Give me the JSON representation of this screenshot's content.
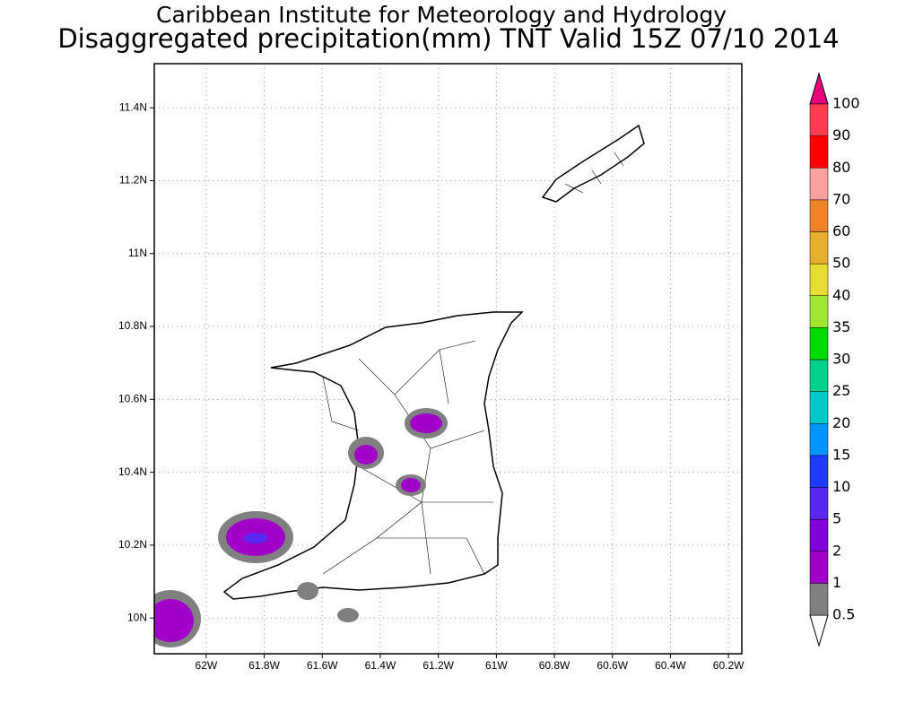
{
  "header": {
    "title": "Caribbean Institute for Meteorology and Hydrology",
    "subtitle": "Disaggregated precipitation(mm) TNT Valid 15Z 07/10 2014"
  },
  "map": {
    "xlim": [
      -62.179,
      -60.154
    ],
    "ylim": [
      9.902,
      11.521
    ],
    "grid": true,
    "xticks": [
      {
        "value": -62,
        "label": "62W"
      },
      {
        "value": -61.8,
        "label": "61.8W"
      },
      {
        "value": -61.6,
        "label": "61.6W"
      },
      {
        "value": -61.4,
        "label": "61.4W"
      },
      {
        "value": -61.2,
        "label": "61.2W"
      },
      {
        "value": -61,
        "label": "61W"
      },
      {
        "value": -60.8,
        "label": "60.8W"
      },
      {
        "value": -60.6,
        "label": "60.6W"
      },
      {
        "value": -60.4,
        "label": "60.4W"
      },
      {
        "value": -60.2,
        "label": "60.2W"
      }
    ],
    "yticks": [
      {
        "value": 10,
        "label": "10N"
      },
      {
        "value": 10.2,
        "label": "10.2N"
      },
      {
        "value": 10.4,
        "label": "10.4N"
      },
      {
        "value": 10.6,
        "label": "10.6N"
      },
      {
        "value": 10.8,
        "label": "10.8N"
      },
      {
        "value": 11,
        "label": "11N"
      },
      {
        "value": 11.2,
        "label": "11.2N"
      },
      {
        "value": 11.4,
        "label": "11.4N"
      }
    ]
  },
  "colorbar": {
    "levels": [
      0.5,
      1,
      2,
      5,
      10,
      15,
      20,
      25,
      30,
      35,
      40,
      50,
      60,
      70,
      80,
      90,
      100
    ],
    "colors": [
      "#808080",
      "#a000c8",
      "#8200dc",
      "#5a28f0",
      "#1e3cff",
      "#0096ff",
      "#00c8c8",
      "#00d28c",
      "#00dc00",
      "#a0e632",
      "#e6dc32",
      "#e6af2d",
      "#f08228",
      "#faa0a0",
      "#ff0000",
      "#ff3c50"
    ],
    "under_color": "#ffffff",
    "over_color": "#e6007d"
  }
}
